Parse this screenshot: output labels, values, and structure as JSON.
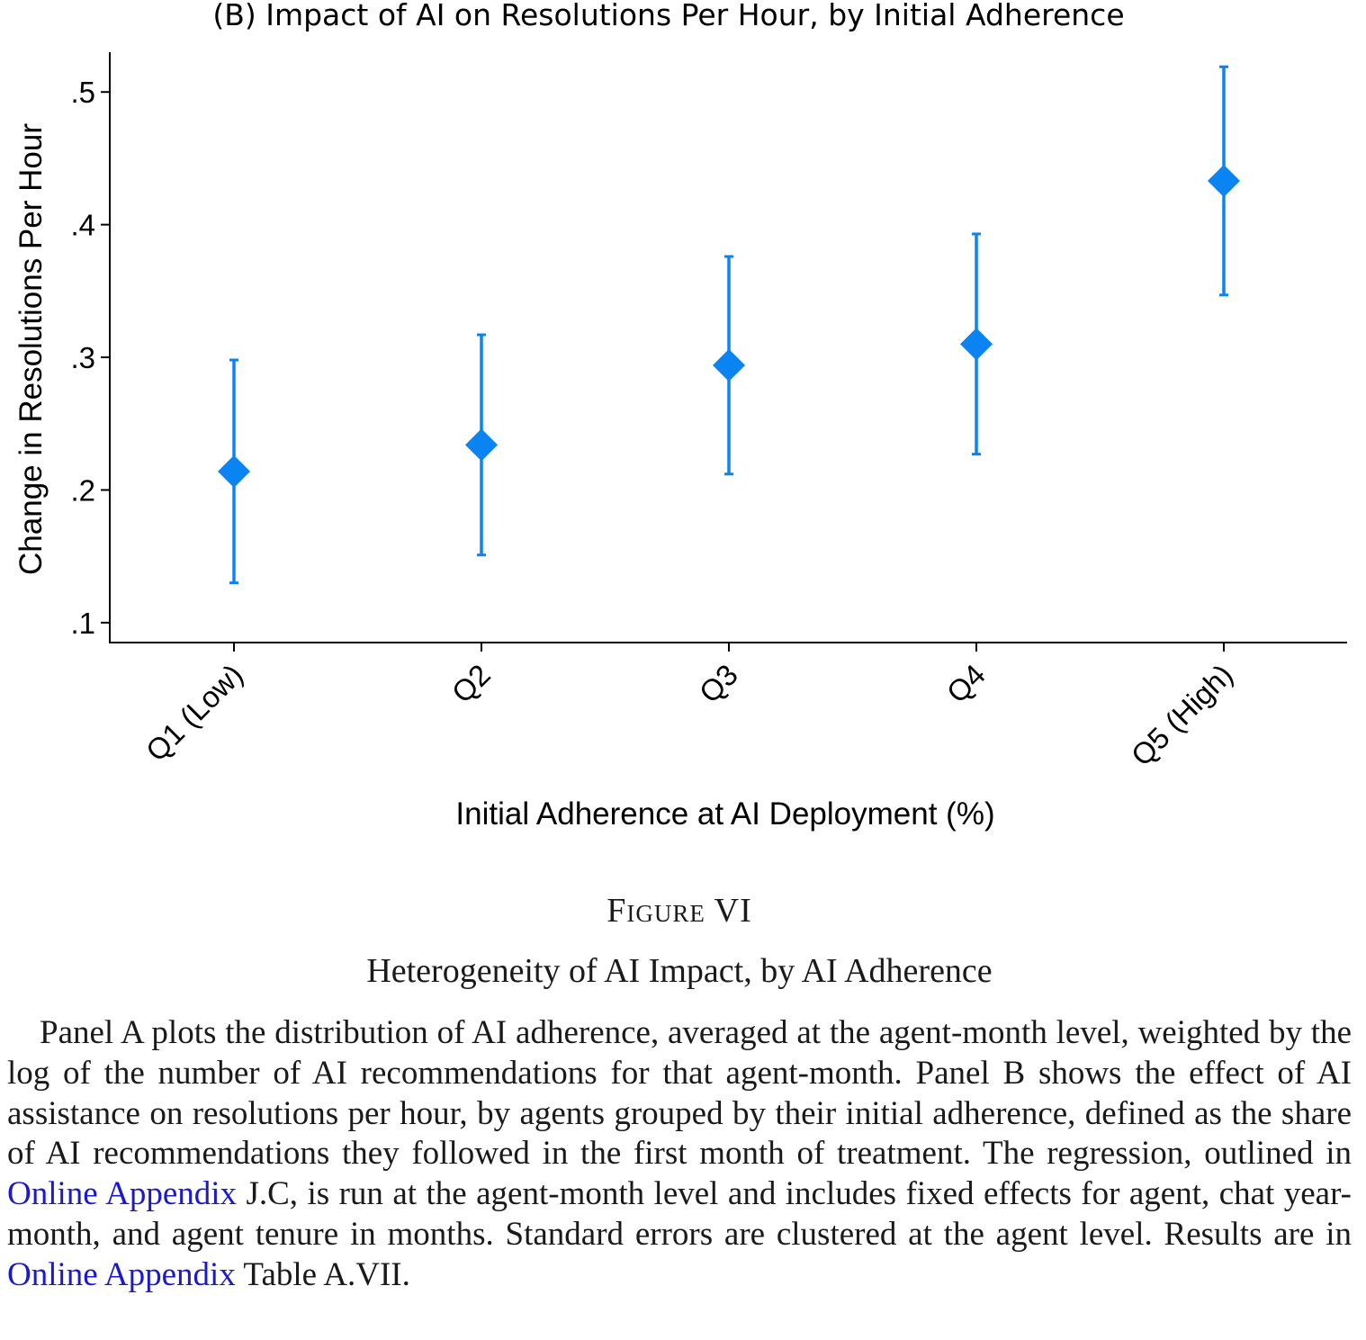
{
  "panel_title": "(B)  Impact of AI on Resolutions Per Hour, by Initial Adherence",
  "chart_data": {
    "type": "scatter",
    "title": "(B)  Impact of AI on Resolutions Per Hour, by Initial Adherence",
    "xlabel": "Initial Adherence at AI Deployment (%)",
    "ylabel": "Change in Resolutions Per Hour",
    "categories": [
      "Q1 (Low)",
      "Q2",
      "Q3",
      "Q4",
      "Q5 (High)"
    ],
    "estimates": [
      0.214,
      0.234,
      0.294,
      0.31,
      0.433
    ],
    "ci_lower": [
      0.13,
      0.151,
      0.212,
      0.227,
      0.347
    ],
    "ci_upper": [
      0.298,
      0.317,
      0.376,
      0.393,
      0.519
    ],
    "ylim": [
      0.085,
      0.53
    ],
    "yticks": [
      0.1,
      0.2,
      0.3,
      0.4,
      0.5
    ],
    "ytick_labels": [
      ".1",
      ".2",
      ".3",
      ".4",
      ".5"
    ],
    "marker_color": "#0b84f3",
    "grid": false
  },
  "caption": {
    "figure_number": "Figure VI",
    "figure_title": "Heterogeneity of AI Impact, by AI Adherence",
    "body_part1": "Panel A plots the distribution of AI adherence, averaged at the agent-month level, weighted by the log of the number of AI recommendations for that agent-month. Panel B shows the effect of AI assistance on resolutions per hour, by agents grouped by their initial adherence, defined as the share of AI recommendations they followed in the first month of treatment. The regression, outlined in ",
    "link1": "Online Appendix",
    "body_part2": " J.C, is run at the agent-month level and includes fixed effects for agent, chat year-month, and agent tenure in months. Standard errors are clustered at the agent level. Results are in ",
    "link2": "Online Appendix",
    "body_part3": " Table A.VII."
  }
}
